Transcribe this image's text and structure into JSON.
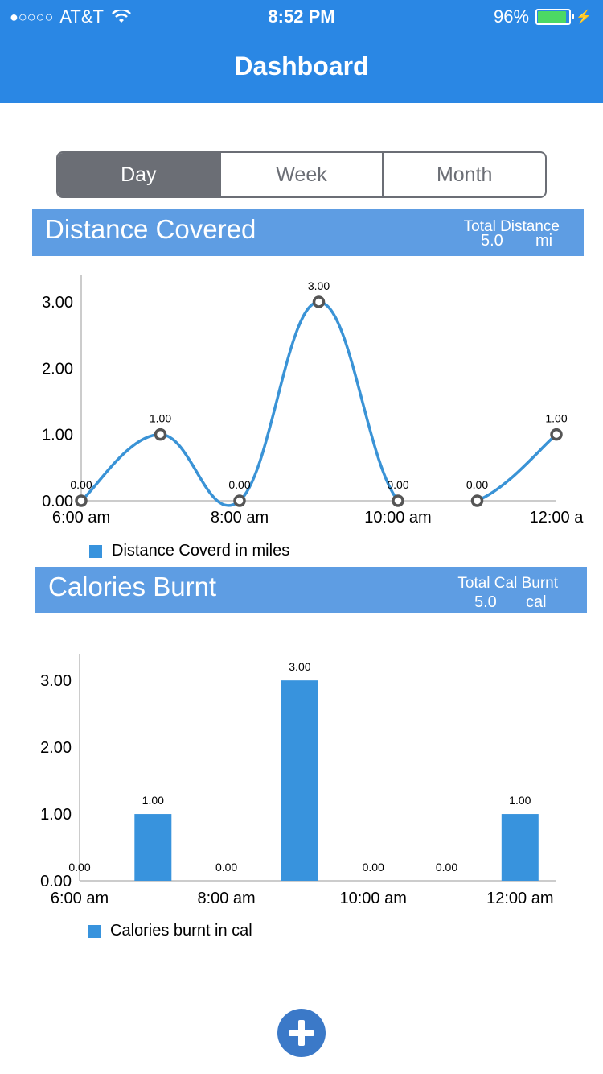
{
  "status_bar": {
    "signal_dots": "●○○○○",
    "carrier": "AT&T",
    "time": "8:52 PM",
    "battery": "96%",
    "battery_level": 0.96
  },
  "nav": {
    "title": "Dashboard"
  },
  "segments": [
    {
      "label": "Day",
      "selected": true
    },
    {
      "label": "Week",
      "selected": false
    },
    {
      "label": "Month",
      "selected": false
    }
  ],
  "distance": {
    "title": "Distance Covered",
    "total_label": "Total Distance",
    "total_value": "5.0",
    "total_unit": "mi"
  },
  "calories": {
    "title": "Calories Burnt",
    "total_label": "Total Cal Burnt",
    "total_value": "5.0",
    "total_unit": "cal"
  },
  "chart_data": [
    {
      "type": "line",
      "x": [
        0,
        1,
        2,
        3,
        4,
        5,
        6
      ],
      "x_tick_labels": [
        "6:00 am",
        "8:00 am",
        "10:00 am",
        "12:00 a"
      ],
      "y_tick_labels": [
        "0.00",
        "1.00",
        "2.00",
        "3.00"
      ],
      "ylim": [
        0,
        3.4
      ],
      "series": [
        {
          "name": "Distance Coverd in miles",
          "values": [
            0,
            1,
            0,
            3,
            0,
            0,
            1
          ],
          "labels": [
            "0.00",
            "1.00",
            "0.00",
            "3.00",
            "0.00",
            "0.00",
            "1.00"
          ]
        }
      ],
      "color": "#3a93d6",
      "legend": "bottom-left"
    },
    {
      "type": "bar",
      "x": [
        0,
        1,
        2,
        3,
        4,
        5,
        6
      ],
      "x_tick_labels": [
        "6:00 am",
        "8:00 am",
        "10:00 am",
        "12:00 am"
      ],
      "y_tick_labels": [
        "0.00",
        "1.00",
        "2.00",
        "3.00"
      ],
      "ylim": [
        0,
        3.4
      ],
      "series": [
        {
          "name": "Calories burnt in cal",
          "values": [
            0,
            1,
            0,
            3,
            0,
            0,
            1
          ],
          "labels": [
            "0.00",
            "1.00",
            "0.00",
            "3.00",
            "0.00",
            "0.00",
            "1.00"
          ]
        }
      ],
      "color": "#3893dd",
      "legend": "bottom-left"
    }
  ],
  "fab": {
    "icon": "plus-icon"
  }
}
